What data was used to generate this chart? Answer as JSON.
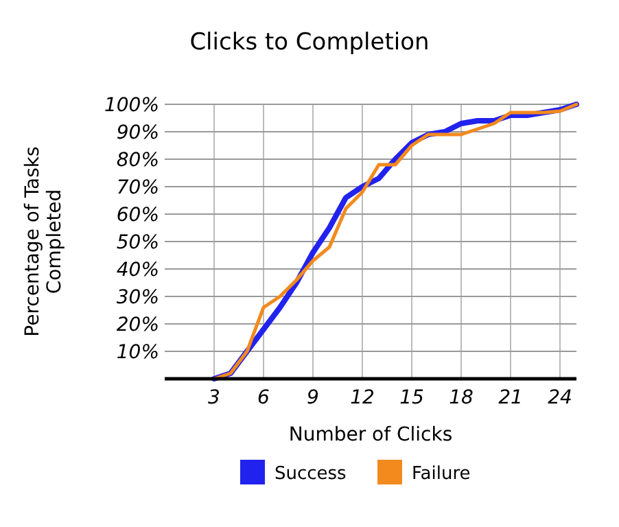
{
  "chart_data": {
    "type": "line",
    "title": "Clicks to Completion",
    "xlabel": "Number of Clicks",
    "ylabel": "Percentage of Tasks Completed",
    "x": [
      3,
      4,
      5,
      6,
      7,
      8,
      9,
      10,
      11,
      12,
      13,
      14,
      15,
      16,
      17,
      18,
      19,
      20,
      21,
      22,
      23,
      24,
      25
    ],
    "series": [
      {
        "name": "Success",
        "color": "#2222ee",
        "values": [
          0,
          2,
          10,
          18,
          26,
          35,
          46,
          55,
          66,
          70,
          73,
          80,
          86,
          89,
          90,
          93,
          94,
          94,
          96,
          96,
          97,
          98,
          100
        ]
      },
      {
        "name": "Failure",
        "color": "#f28a1e",
        "values": [
          0,
          2,
          10,
          26,
          30,
          36,
          43,
          48,
          62,
          68,
          78,
          78,
          85,
          89,
          89,
          89,
          91,
          93,
          97,
          97,
          97,
          97.5,
          100
        ]
      }
    ],
    "xlim": [
      0,
      25
    ],
    "xticks": [
      3,
      6,
      9,
      12,
      15,
      18,
      21,
      24
    ],
    "ylim": [
      0,
      100
    ],
    "yticks": [
      {
        "value": 10,
        "label": "10%"
      },
      {
        "value": 20,
        "label": "20%"
      },
      {
        "value": 30,
        "label": "30%"
      },
      {
        "value": 40,
        "label": "40%"
      },
      {
        "value": 50,
        "label": "50%"
      },
      {
        "value": 60,
        "label": "60%"
      },
      {
        "value": 70,
        "label": "70%"
      },
      {
        "value": 80,
        "label": "80%"
      },
      {
        "value": 90,
        "label": "90%"
      },
      {
        "value": 100,
        "label": "100%"
      }
    ],
    "grid": true,
    "legend": "bottom",
    "marker": "none",
    "line_style": "solid"
  }
}
